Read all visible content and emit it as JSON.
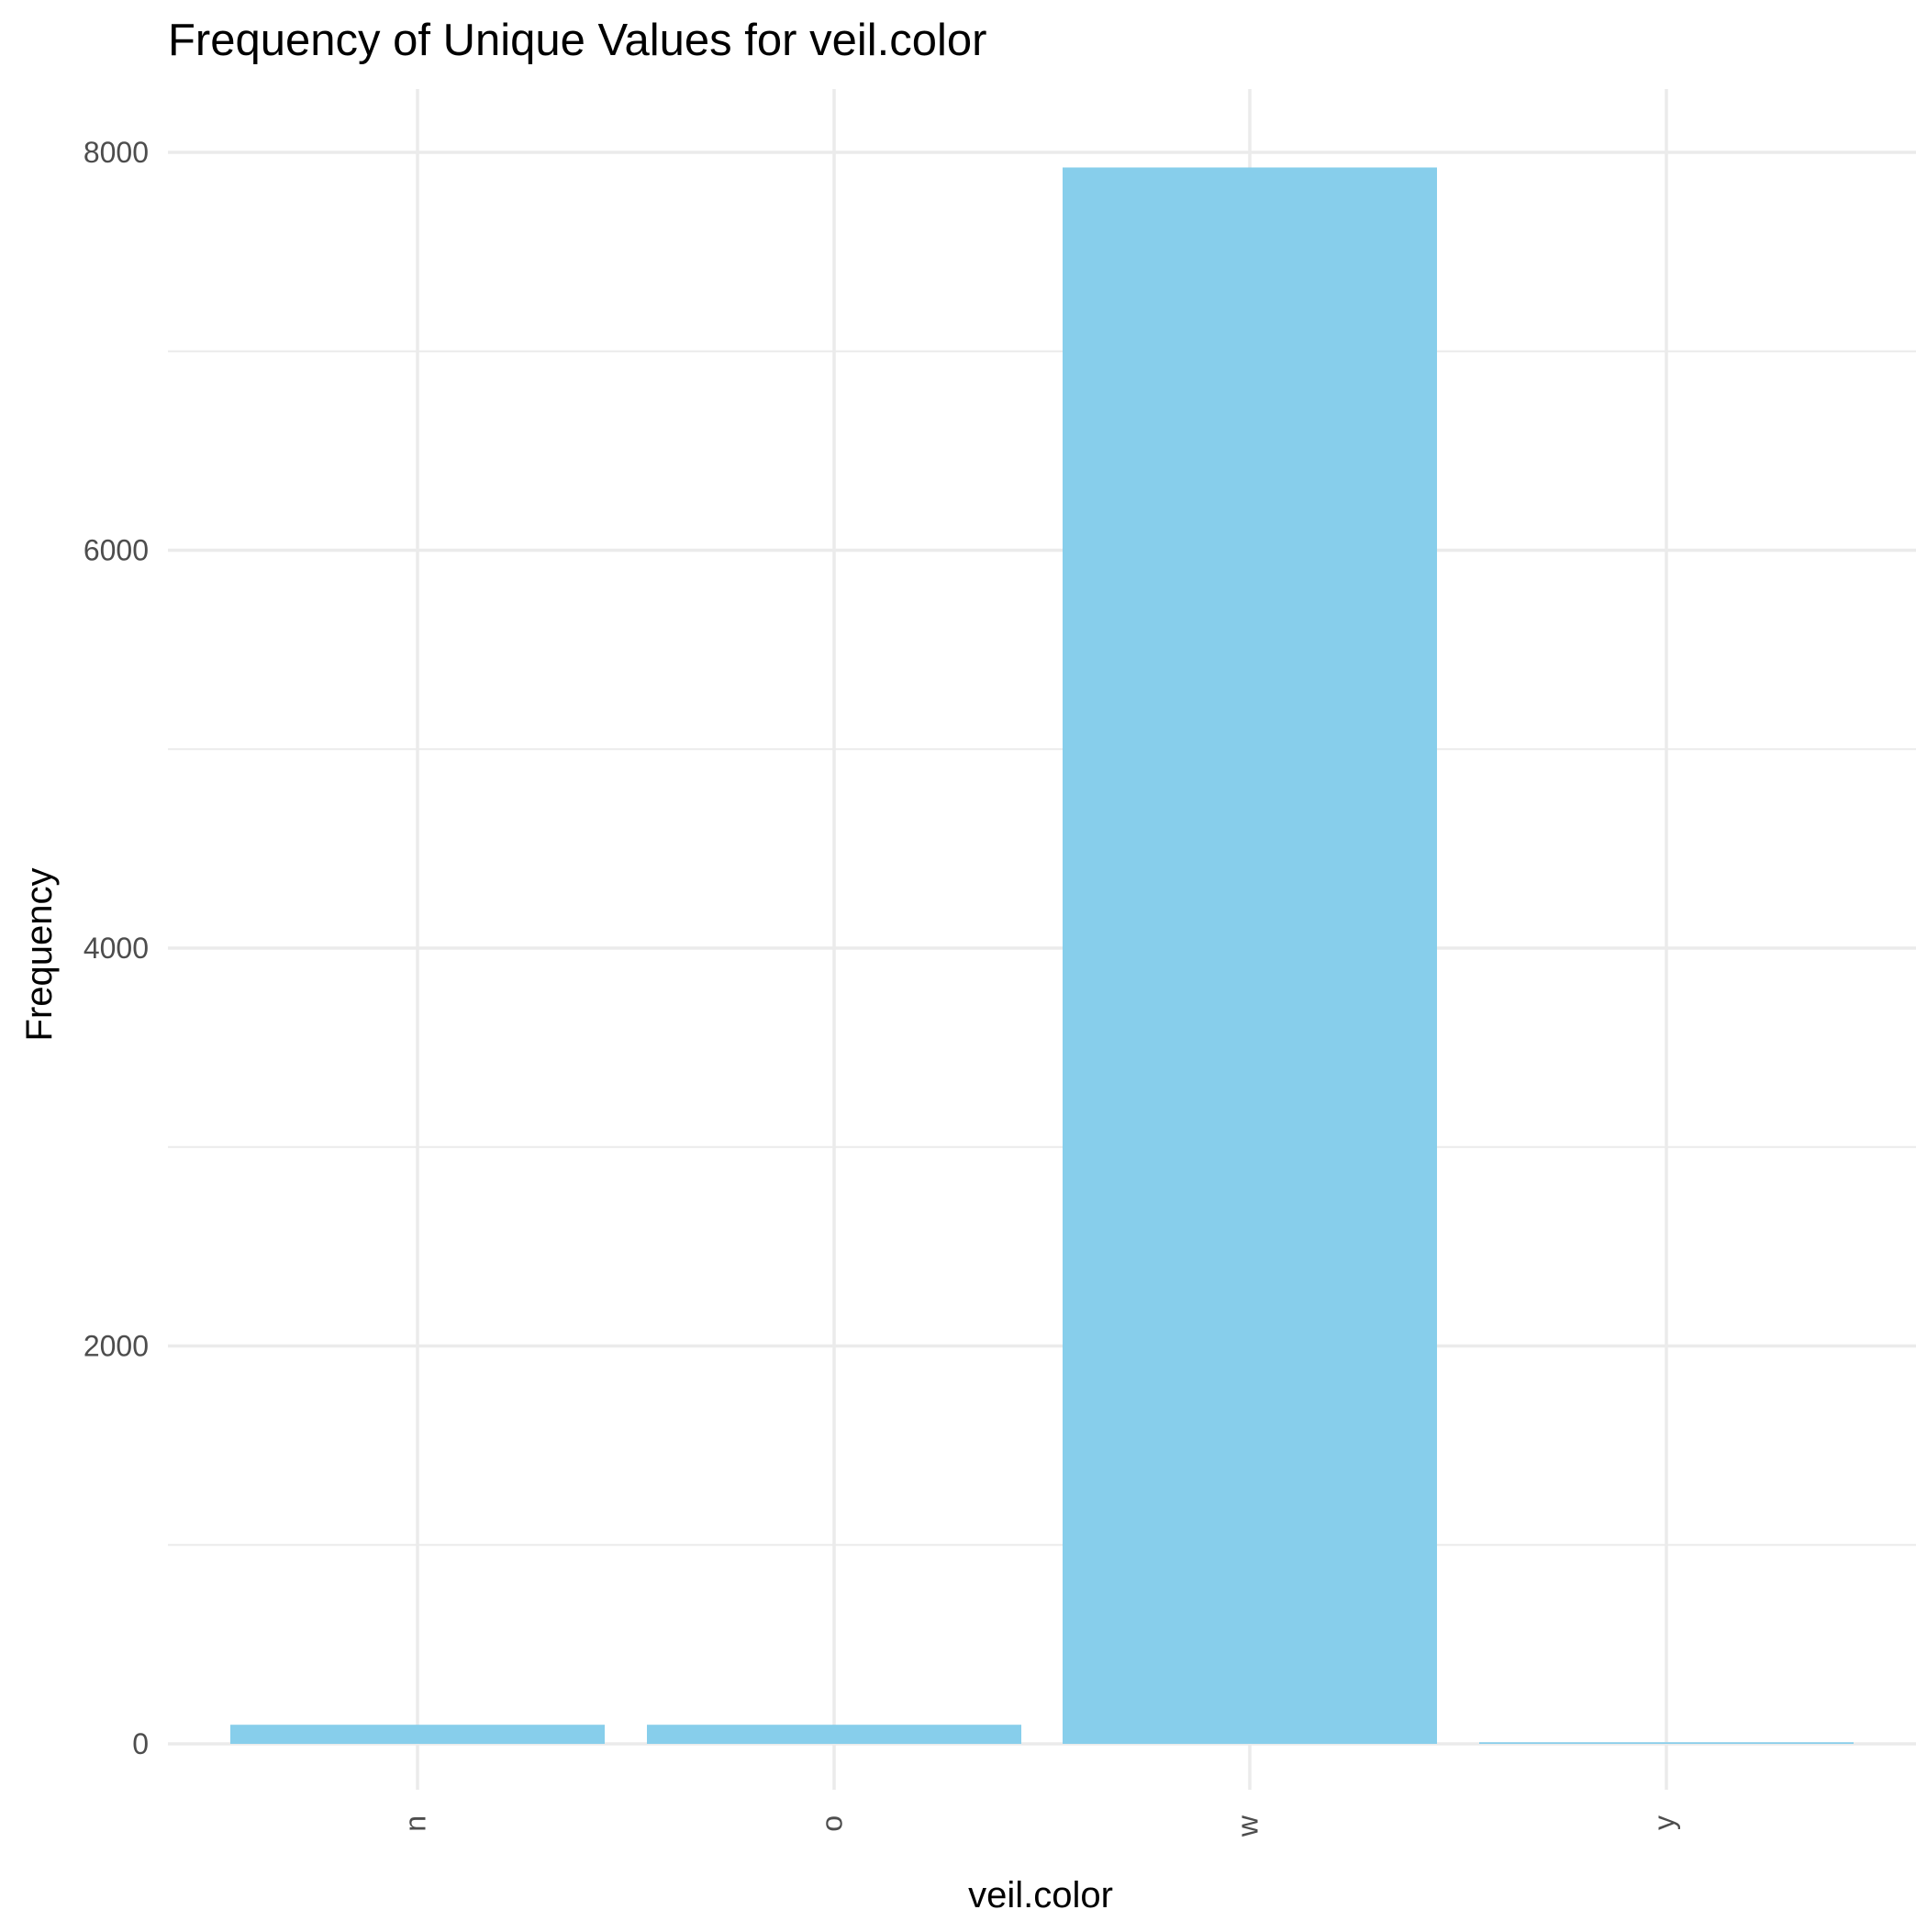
{
  "chart_data": {
    "type": "bar",
    "title": "Frequency of Unique Values for veil.color",
    "xlabel": "veil.color",
    "ylabel": "Frequency",
    "categories": [
      "n",
      "o",
      "w",
      "y"
    ],
    "values": [
      96,
      96,
      7924,
      8
    ],
    "ylim": [
      0,
      8300
    ],
    "yticks": [
      0,
      2000,
      4000,
      6000,
      8000
    ],
    "ytick_labels": [
      "0",
      "2000",
      "4000",
      "6000",
      "8000"
    ],
    "minor_yticks": [
      1000,
      3000,
      5000,
      7000
    ],
    "grid": true,
    "legend": "none",
    "bar_color": "#87CEEB",
    "x_tick_rotation": "vertical"
  }
}
